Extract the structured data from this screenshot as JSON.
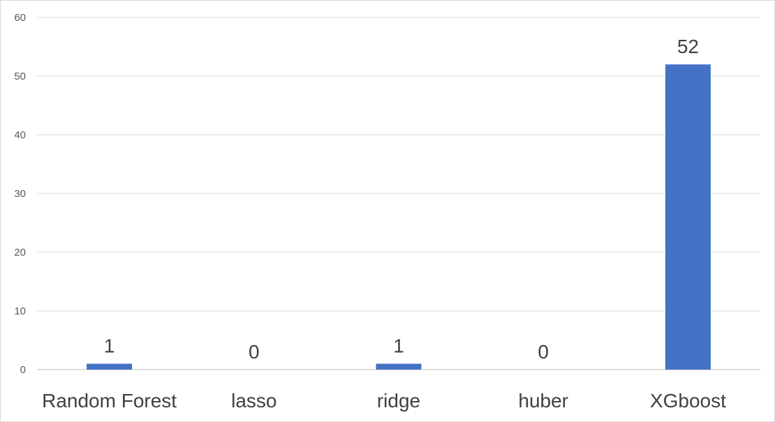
{
  "chart_data": {
    "type": "bar",
    "categories": [
      "Random Forest",
      "lasso",
      "ridge",
      "huber",
      "XGboost"
    ],
    "values": [
      1,
      0,
      1,
      0,
      52
    ],
    "data_labels": [
      "1",
      "0",
      "1",
      "0",
      "52"
    ],
    "y_ticks": [
      "0",
      "10",
      "20",
      "30",
      "40",
      "50",
      "60"
    ],
    "ylim": [
      0,
      60
    ],
    "grid": true,
    "legend": "none",
    "bar_color": "#4472C4"
  }
}
